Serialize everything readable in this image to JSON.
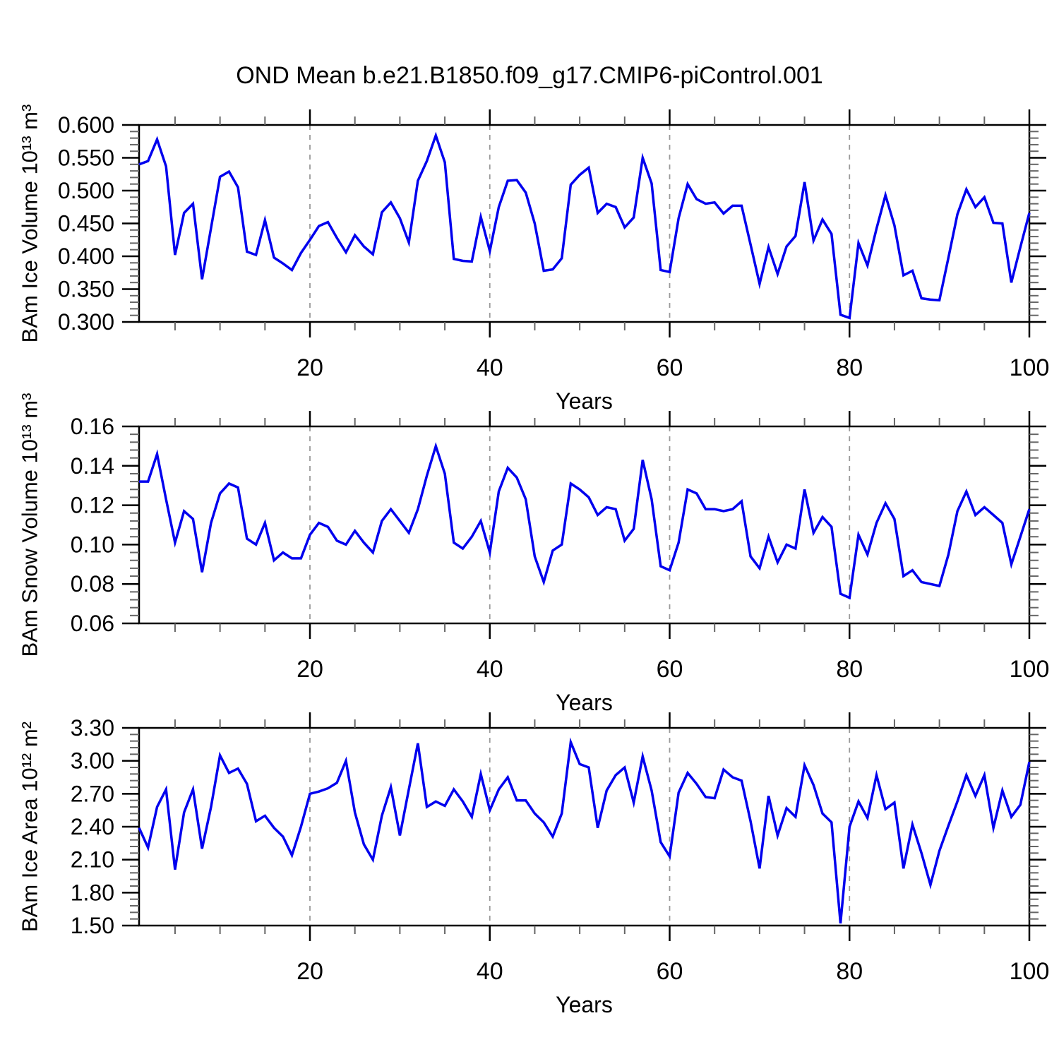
{
  "title": "OND Mean b.e21.B1850.f09_g17.CMIP6-piControl.001",
  "chart_data": [
    {
      "type": "line",
      "name": "bam-ice-volume",
      "ylabel": "BAm Ice Volume 10¹³ m³",
      "xlabel": "Years",
      "x_start": 1,
      "x_end": 100,
      "ylim": [
        0.3,
        0.6
      ],
      "ytick_labels": [
        "0.300",
        "0.350",
        "0.400",
        "0.450",
        "0.500",
        "0.550",
        "0.600"
      ],
      "yticks": [
        0.3,
        0.35,
        0.4,
        0.45,
        0.5,
        0.55,
        0.6
      ],
      "xticks": [
        20,
        40,
        60,
        80,
        100
      ],
      "xtick_minor_step": 5,
      "grid_x": [
        20,
        40,
        60,
        80
      ],
      "grid_on": "vertical-dashed-only",
      "legend": "none",
      "line_color": "#0000ee",
      "values": [
        0.54,
        0.545,
        0.578,
        0.537,
        0.402,
        0.466,
        0.48,
        0.365,
        0.443,
        0.521,
        0.529,
        0.505,
        0.407,
        0.402,
        0.455,
        0.398,
        0.389,
        0.379,
        0.405,
        0.425,
        0.446,
        0.452,
        0.428,
        0.406,
        0.432,
        0.415,
        0.403,
        0.467,
        0.482,
        0.458,
        0.421,
        0.515,
        0.545,
        0.584,
        0.543,
        0.396,
        0.393,
        0.392,
        0.46,
        0.408,
        0.475,
        0.515,
        0.516,
        0.497,
        0.45,
        0.378,
        0.38,
        0.397,
        0.509,
        0.524,
        0.535,
        0.466,
        0.48,
        0.475,
        0.444,
        0.459,
        0.55,
        0.511,
        0.379,
        0.376,
        0.458,
        0.51,
        0.487,
        0.48,
        0.482,
        0.465,
        0.477,
        0.477,
        0.418,
        0.358,
        0.414,
        0.373,
        0.415,
        0.431,
        0.513,
        0.424,
        0.456,
        0.434,
        0.311,
        0.306,
        0.42,
        0.386,
        0.442,
        0.493,
        0.447,
        0.371,
        0.378,
        0.336,
        0.334,
        0.333,
        0.398,
        0.464,
        0.502,
        0.475,
        0.49,
        0.451,
        0.45,
        0.36,
        0.414,
        0.466
      ]
    },
    {
      "type": "line",
      "name": "bam-snow-volume",
      "ylabel": "BAm Snow Volume 10¹³ m³",
      "xlabel": "Years",
      "x_start": 1,
      "x_end": 100,
      "ylim": [
        0.06,
        0.16
      ],
      "ytick_labels": [
        "0.06",
        "0.08",
        "0.10",
        "0.12",
        "0.14",
        "0.16"
      ],
      "yticks": [
        0.06,
        0.08,
        0.1,
        0.12,
        0.14,
        0.16
      ],
      "xticks": [
        20,
        40,
        60,
        80,
        100
      ],
      "xtick_minor_step": 5,
      "grid_x": [
        20,
        40,
        60,
        80
      ],
      "grid_on": "vertical-dashed-only",
      "legend": "none",
      "line_color": "#0000ee",
      "values": [
        0.132,
        0.132,
        0.146,
        0.123,
        0.101,
        0.117,
        0.113,
        0.086,
        0.111,
        0.126,
        0.131,
        0.129,
        0.103,
        0.1,
        0.111,
        0.092,
        0.096,
        0.093,
        0.093,
        0.105,
        0.111,
        0.109,
        0.102,
        0.1,
        0.107,
        0.101,
        0.096,
        0.112,
        0.118,
        0.112,
        0.106,
        0.118,
        0.135,
        0.15,
        0.136,
        0.101,
        0.098,
        0.104,
        0.112,
        0.096,
        0.127,
        0.139,
        0.134,
        0.123,
        0.094,
        0.081,
        0.097,
        0.1,
        0.131,
        0.128,
        0.124,
        0.115,
        0.119,
        0.118,
        0.102,
        0.108,
        0.143,
        0.123,
        0.089,
        0.087,
        0.101,
        0.128,
        0.126,
        0.118,
        0.118,
        0.117,
        0.118,
        0.122,
        0.094,
        0.088,
        0.104,
        0.091,
        0.1,
        0.098,
        0.128,
        0.106,
        0.114,
        0.109,
        0.075,
        0.073,
        0.105,
        0.095,
        0.111,
        0.121,
        0.113,
        0.084,
        0.087,
        0.081,
        0.08,
        0.079,
        0.095,
        0.117,
        0.127,
        0.115,
        0.119,
        0.115,
        0.111,
        0.09,
        0.104,
        0.118
      ]
    },
    {
      "type": "line",
      "name": "bam-ice-area",
      "ylabel": "BAm Ice Area 10¹² m²",
      "xlabel": "Years",
      "x_start": 1,
      "x_end": 100,
      "ylim": [
        1.5,
        3.3
      ],
      "ytick_labels": [
        "1.50",
        "1.80",
        "2.10",
        "2.40",
        "2.70",
        "3.00",
        "3.30"
      ],
      "yticks": [
        1.5,
        1.8,
        2.1,
        2.4,
        2.7,
        3.0,
        3.3
      ],
      "xticks": [
        20,
        40,
        60,
        80,
        100
      ],
      "xtick_minor_step": 5,
      "grid_x": [
        20,
        40,
        60,
        80
      ],
      "grid_on": "vertical-dashed-only",
      "legend": "none",
      "line_color": "#0000ee",
      "values": [
        2.39,
        2.21,
        2.58,
        2.74,
        2.01,
        2.53,
        2.74,
        2.2,
        2.58,
        3.05,
        2.89,
        2.93,
        2.79,
        2.45,
        2.5,
        2.39,
        2.31,
        2.14,
        2.4,
        2.7,
        2.72,
        2.75,
        2.8,
        3.0,
        2.53,
        2.24,
        2.1,
        2.5,
        2.76,
        2.32,
        2.74,
        3.16,
        2.58,
        2.63,
        2.59,
        2.74,
        2.63,
        2.49,
        2.88,
        2.55,
        2.74,
        2.85,
        2.64,
        2.64,
        2.52,
        2.44,
        2.31,
        2.52,
        3.17,
        2.97,
        2.94,
        2.39,
        2.73,
        2.87,
        2.94,
        2.62,
        3.04,
        2.73,
        2.26,
        2.13,
        2.71,
        2.89,
        2.79,
        2.67,
        2.66,
        2.92,
        2.85,
        2.82,
        2.45,
        2.02,
        2.68,
        2.32,
        2.57,
        2.49,
        2.96,
        2.78,
        2.52,
        2.44,
        1.52,
        2.4,
        2.63,
        2.48,
        2.87,
        2.56,
        2.62,
        2.02,
        2.42,
        2.16,
        1.87,
        2.18,
        2.41,
        2.63,
        2.87,
        2.68,
        2.87,
        2.39,
        2.73,
        2.49,
        2.6,
        2.99
      ]
    }
  ]
}
